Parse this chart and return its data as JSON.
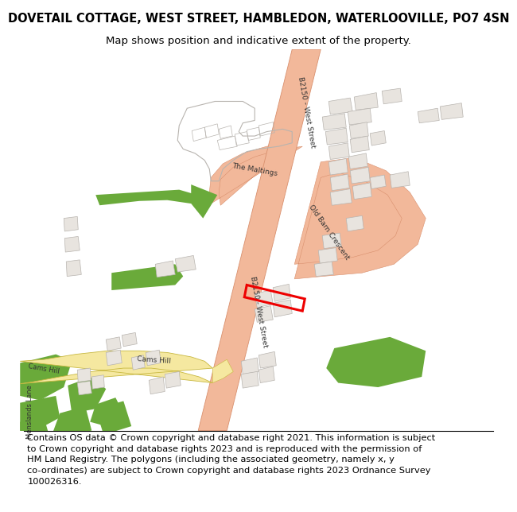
{
  "title_line1": "DOVETAIL COTTAGE, WEST STREET, HAMBLEDON, WATERLOOVILLE, PO7 4SN",
  "title_line2": "Map shows position and indicative extent of the property.",
  "footer_text": "Contains OS data © Crown copyright and database right 2021. This information is subject\nto Crown copyright and database rights 2023 and is reproduced with the permission of\nHM Land Registry. The polygons (including the associated geometry, namely x, y\nco-ordinates) are subject to Crown copyright and database rights 2023 Ordnance Survey\n100026316.",
  "bg_color": "#ffffff",
  "map_bg": "#ffffff",
  "road_color": "#f2b89a",
  "road_edge_color": "#d9906e",
  "building_color": "#e8e4df",
  "building_edge_color": "#b8b4af",
  "green_color": "#6aaa3a",
  "yellow_road_color": "#f5e8a0",
  "yellow_road_edge": "#c8b840",
  "property_edge": "#ee0000",
  "title_fontsize": 10.5,
  "subtitle_fontsize": 9.5,
  "footer_fontsize": 8.2,
  "label_fontsize": 6.5
}
